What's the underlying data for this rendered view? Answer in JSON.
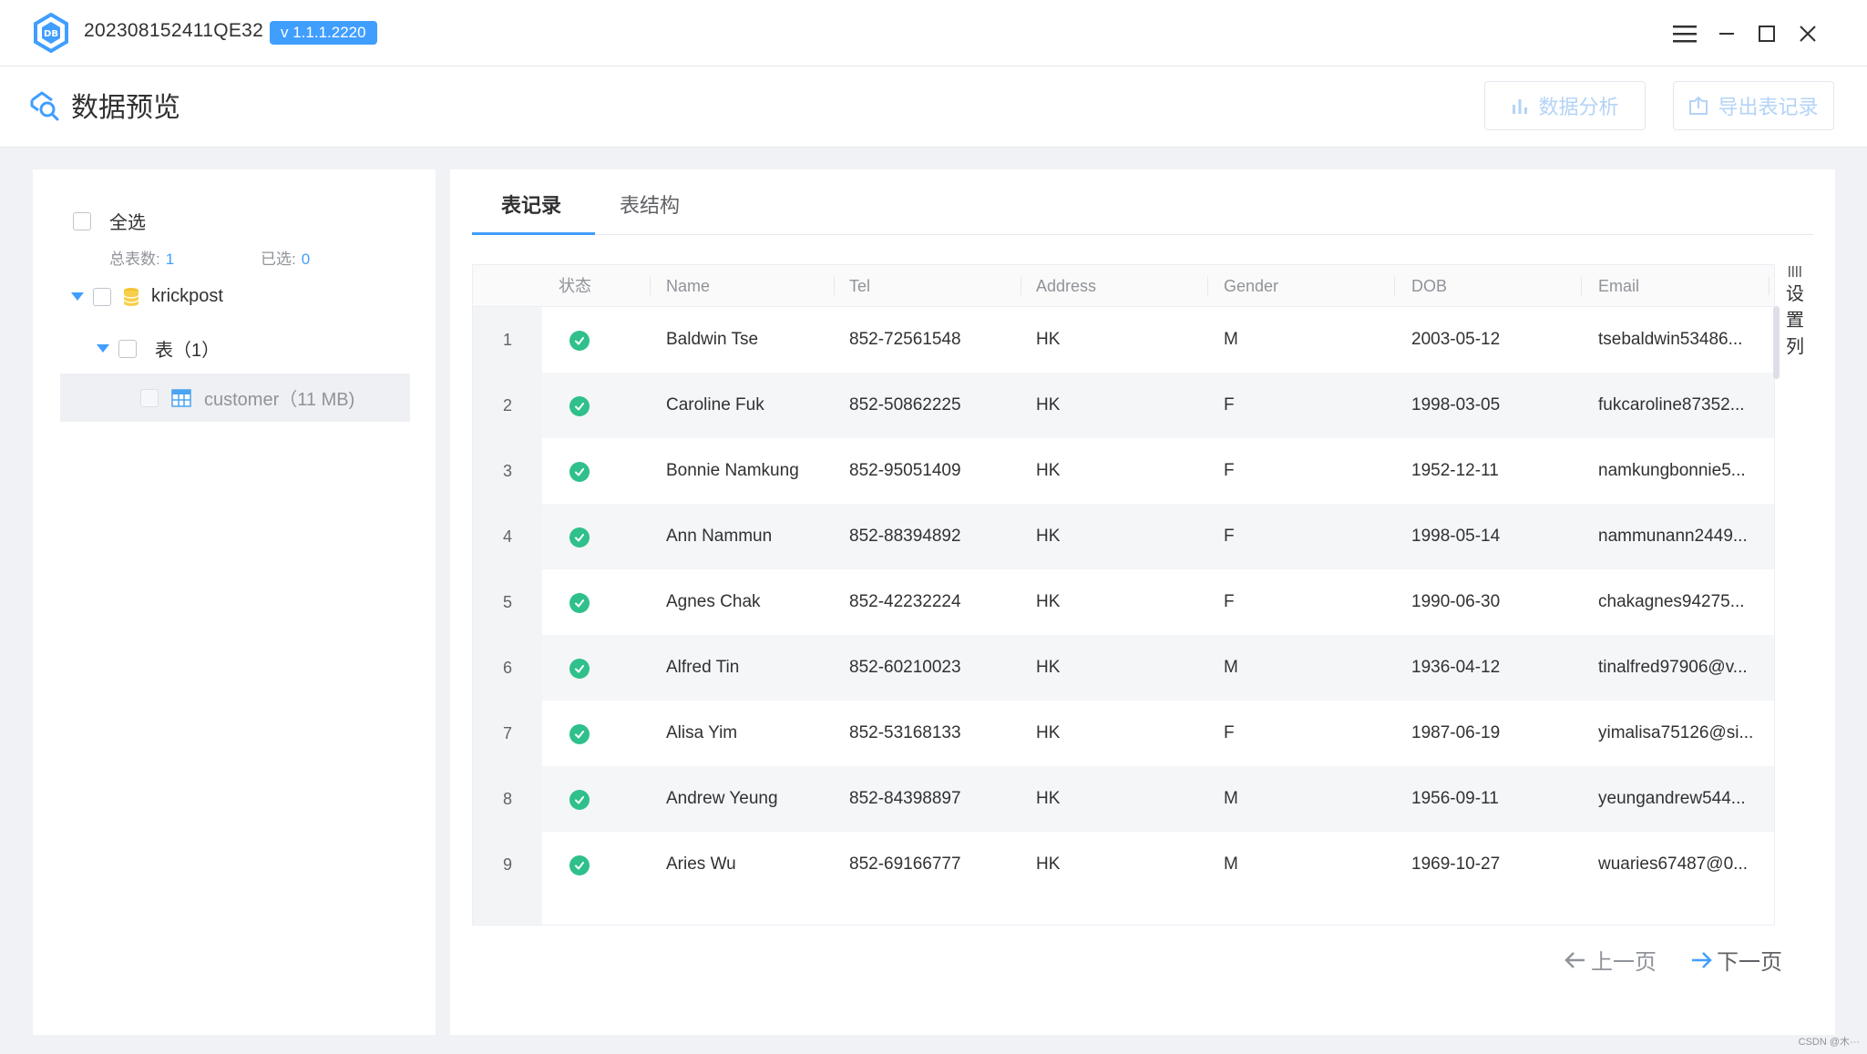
{
  "window": {
    "title": "202308152411QE32",
    "version": "v 1.1.1.2220"
  },
  "page": {
    "title": "数据预览",
    "buttons": {
      "analyze": "数据分析",
      "export": "导出表记录"
    }
  },
  "tree": {
    "select_all": "全选",
    "total_label": "总表数:",
    "total_value": "1",
    "selected_label": "已选:",
    "selected_value": "0",
    "database": "krickpost",
    "group": "表（1）",
    "table": "customer（11 MB)"
  },
  "tabs": [
    {
      "label": "表记录",
      "active": true
    },
    {
      "label": "表结构",
      "active": false
    }
  ],
  "table": {
    "columns": [
      "状态",
      "Name",
      "Tel",
      "Address",
      "Gender",
      "DOB",
      "Email"
    ],
    "rows": [
      {
        "n": "1",
        "name": "Baldwin Tse",
        "tel": "852-72561548",
        "address": "HK",
        "gender": "M",
        "dob": "2003-05-12",
        "email": "tsebaldwin53486..."
      },
      {
        "n": "2",
        "name": "Caroline Fuk",
        "tel": "852-50862225",
        "address": "HK",
        "gender": "F",
        "dob": "1998-03-05",
        "email": "fukcaroline87352..."
      },
      {
        "n": "3",
        "name": "Bonnie Namkung",
        "tel": "852-95051409",
        "address": "HK",
        "gender": "F",
        "dob": "1952-12-11",
        "email": "namkungbonnie5..."
      },
      {
        "n": "4",
        "name": "Ann Nammun",
        "tel": "852-88394892",
        "address": "HK",
        "gender": "F",
        "dob": "1998-05-14",
        "email": "nammunann2449..."
      },
      {
        "n": "5",
        "name": "Agnes Chak",
        "tel": "852-42232224",
        "address": "HK",
        "gender": "F",
        "dob": "1990-06-30",
        "email": "chakagnes94275..."
      },
      {
        "n": "6",
        "name": "Alfred Tin",
        "tel": "852-60210023",
        "address": "HK",
        "gender": "M",
        "dob": "1936-04-12",
        "email": "tinalfred97906@v..."
      },
      {
        "n": "7",
        "name": "Alisa Yim",
        "tel": "852-53168133",
        "address": "HK",
        "gender": "F",
        "dob": "1987-06-19",
        "email": "yimalisa75126@si..."
      },
      {
        "n": "8",
        "name": "Andrew Yeung",
        "tel": "852-84398897",
        "address": "HK",
        "gender": "M",
        "dob": "1956-09-11",
        "email": "yeungandrew544..."
      },
      {
        "n": "9",
        "name": "Aries Wu",
        "tel": "852-69166777",
        "address": "HK",
        "gender": "M",
        "dob": "1969-10-27",
        "email": "wuaries67487@0..."
      }
    ]
  },
  "column_settings": [
    "设",
    "置",
    "列"
  ],
  "pager": {
    "prev": "上一页",
    "next": "下一页"
  },
  "watermark": "CSDN @木···",
  "colors": {
    "accent": "#409eff",
    "status_ok": "#2fc08b",
    "disabled_text": "#b3d3f7"
  }
}
